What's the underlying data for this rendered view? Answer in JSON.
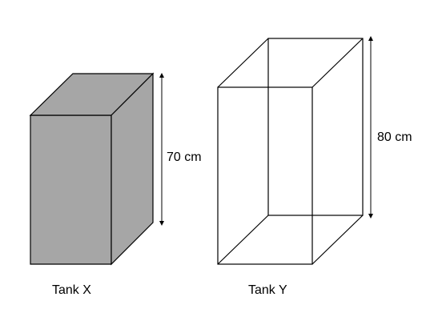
{
  "diagram": {
    "tank_x": {
      "label": "Tank X",
      "height_label": "70 cm",
      "fill_color": "#a6a6a6",
      "style": "solid"
    },
    "tank_y": {
      "label": "Tank Y",
      "height_label": "80 cm",
      "fill_color": "#ffffff",
      "style": "wireframe"
    },
    "stroke_color": "#000000"
  }
}
